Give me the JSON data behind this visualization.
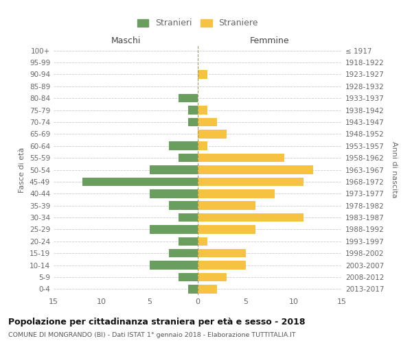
{
  "age_groups": [
    "0-4",
    "5-9",
    "10-14",
    "15-19",
    "20-24",
    "25-29",
    "30-34",
    "35-39",
    "40-44",
    "45-49",
    "50-54",
    "55-59",
    "60-64",
    "65-69",
    "70-74",
    "75-79",
    "80-84",
    "85-89",
    "90-94",
    "95-99",
    "100+"
  ],
  "birth_years": [
    "2013-2017",
    "2008-2012",
    "2003-2007",
    "1998-2002",
    "1993-1997",
    "1988-1992",
    "1983-1987",
    "1978-1982",
    "1973-1977",
    "1968-1972",
    "1963-1967",
    "1958-1962",
    "1953-1957",
    "1948-1952",
    "1943-1947",
    "1938-1942",
    "1933-1937",
    "1928-1932",
    "1923-1927",
    "1918-1922",
    "≤ 1917"
  ],
  "maschi": [
    1,
    2,
    5,
    3,
    2,
    5,
    2,
    3,
    5,
    12,
    5,
    2,
    3,
    0,
    1,
    1,
    2,
    0,
    0,
    0,
    0
  ],
  "femmine": [
    2,
    3,
    5,
    5,
    1,
    6,
    11,
    6,
    8,
    11,
    12,
    9,
    1,
    3,
    2,
    1,
    0,
    0,
    1,
    0,
    0
  ],
  "maschi_color": "#6a9e5f",
  "femmine_color": "#f5c242",
  "title": "Popolazione per cittadinanza straniera per età e sesso - 2018",
  "subtitle": "COMUNE DI MONGRANDO (BI) - Dati ISTAT 1° gennaio 2018 - Elaborazione TUTTITALIA.IT",
  "ylabel_left": "Fasce di età",
  "ylabel_right": "Anni di nascita",
  "xlabel_left": "Maschi",
  "xlabel_right": "Femmine",
  "legend_stranieri": "Stranieri",
  "legend_straniere": "Straniere",
  "xlim": 15,
  "background_color": "#ffffff",
  "grid_color": "#cccccc",
  "label_color": "#666666"
}
